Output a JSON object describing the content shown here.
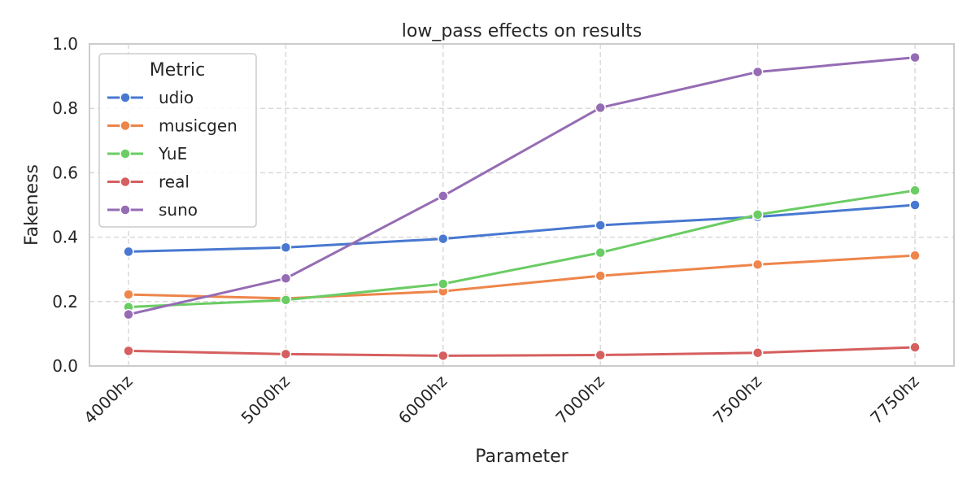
{
  "chart_data": {
    "type": "line",
    "title": "low_pass effects on results",
    "xlabel": "Parameter",
    "ylabel": "Fakeness",
    "categories": [
      "4000hz",
      "5000hz",
      "6000hz",
      "7000hz",
      "7500hz",
      "7750hz"
    ],
    "ylim": [
      0,
      1.0
    ],
    "yticks": [
      "0.0",
      "0.2",
      "0.4",
      "0.6",
      "0.8",
      "1.0"
    ],
    "grid": true,
    "legend": {
      "title": "Metric",
      "placement": "top-left"
    },
    "series": [
      {
        "name": "udio",
        "color": "#4878d0",
        "values": [
          0.355,
          0.368,
          0.395,
          0.437,
          0.463,
          0.5
        ]
      },
      {
        "name": "musicgen",
        "color": "#ee854a",
        "values": [
          0.222,
          0.21,
          0.232,
          0.28,
          0.315,
          0.343
        ]
      },
      {
        "name": "YuE",
        "color": "#6acc64",
        "values": [
          0.183,
          0.205,
          0.255,
          0.352,
          0.47,
          0.545
        ]
      },
      {
        "name": "real",
        "color": "#d65f5f",
        "values": [
          0.047,
          0.037,
          0.032,
          0.034,
          0.041,
          0.058
        ]
      },
      {
        "name": "suno",
        "color": "#956cb4",
        "values": [
          0.16,
          0.272,
          0.528,
          0.802,
          0.913,
          0.958
        ]
      }
    ]
  }
}
